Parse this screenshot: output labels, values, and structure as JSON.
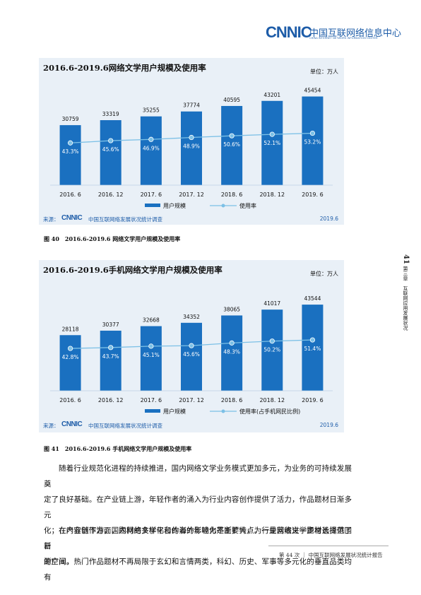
{
  "header": {
    "logo_mark": "CNNIC",
    "logo_cn": "中国互联网络信息中心",
    "logo_en": "CHINA INTERNET NETWORK INFORMATION CENTER"
  },
  "figures": [
    {
      "title": "2016.6-2019.6网络文学用户规模及使用率",
      "unit": "单位：万人",
      "legend_bar": "用户规模",
      "legend_line": "使用率",
      "source_label": "来源：",
      "source_logo": "CNNIC",
      "source_name": "中国互联网络发展状况统计调查",
      "source_date": "2019.6",
      "caption": "图 40　2016.6-2019.6 网络文学用户规模及使用率"
    },
    {
      "title": "2016.6-2019.6手机网络文学用户规模及使用率",
      "unit": "单位：万人",
      "legend_bar": "用户规模",
      "legend_line": "使用率(占手机网民比例)",
      "source_label": "来源：",
      "source_logo": "CNNIC",
      "source_name": "中国互联网络发展状况统计调查",
      "source_date": "2019.6",
      "caption": "图 41　2016.6-2019.6 手机网络文学用户规模及使用率"
    }
  ],
  "chart_data": [
    {
      "type": "bar",
      "title": "2016.6-2019.6网络文学用户规模及使用率",
      "categories": [
        "2016. 6",
        "2016. 12",
        "2017. 6",
        "2017. 12",
        "2018. 6",
        "2018. 12",
        "2019. 6"
      ],
      "series": [
        {
          "name": "用户规模",
          "type": "bar",
          "values": [
            30759,
            33319,
            35255,
            37774,
            40595,
            43201,
            45454
          ]
        },
        {
          "name": "使用率",
          "type": "line",
          "values": [
            43.3,
            45.6,
            46.9,
            48.9,
            50.6,
            52.1,
            53.2
          ],
          "labels": [
            "43.3%",
            "45.6%",
            "46.9%",
            "48.9%",
            "50.6%",
            "52.1%",
            "53.2%"
          ]
        }
      ],
      "bar_ylim": [
        0,
        50000
      ],
      "line_ylim": [
        0,
        100
      ],
      "legend": "bottom",
      "grid": false,
      "colors": {
        "bar": "#1a70c0",
        "line": "#7cc0e6"
      }
    },
    {
      "type": "bar",
      "title": "2016.6-2019.6手机网络文学用户规模及使用率",
      "categories": [
        "2016. 6",
        "2016. 12",
        "2017. 6",
        "2017. 12",
        "2018. 6",
        "2018. 12",
        "2019. 6"
      ],
      "series": [
        {
          "name": "用户规模",
          "type": "bar",
          "values": [
            28118,
            30377,
            32668,
            34352,
            38065,
            41017,
            43544
          ]
        },
        {
          "name": "使用率(占手机网民比例)",
          "type": "line",
          "values": [
            42.8,
            43.7,
            45.1,
            45.6,
            48.3,
            50.2,
            51.4
          ],
          "labels": [
            "42.8%",
            "43.7%",
            "45.1%",
            "45.6%",
            "48.3%",
            "50.2%",
            "51.4%"
          ]
        }
      ],
      "bar_ylim": [
        0,
        50000
      ],
      "line_ylim": [
        0,
        100
      ],
      "legend": "bottom",
      "grid": false,
      "colors": {
        "bar": "#1a70c0",
        "line": "#7cc0e6"
      }
    }
  ],
  "side": {
    "page_num": "41",
    "text": "第三章　互联网应用发展状况"
  },
  "body": {
    "p1": [
      "随着行业规范化进程的持续推进，国内网络文学业务模式更加多元，为业务的可持续发展奠",
      "定了良好基础。在产业链上游，年轻作者的涌入为行业内容创作提供了活力，作品题材日渐多元",
      "化；在产业链下游，国内网络文学平台的海外影响力不断扩大，为行业营收进一步增长提供了新",
      "的空间。"
    ],
    "p2": [
      "在内容创作方面，题材的多样化和作者的年轻化是主要特点。一是网络文学题材选择范围日",
      "渐广阔，热门作品题材不再局限于玄幻和言情两类，科幻、历史、军事等多元化的垂直品类均有"
    ]
  },
  "footer": {
    "text": "第 44 次 ｜ 中国互联网络发展状况统计报告"
  }
}
